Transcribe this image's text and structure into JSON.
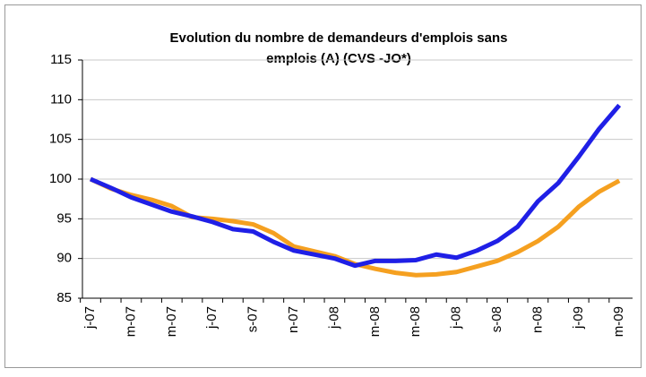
{
  "chart_data": {
    "type": "line",
    "title": [
      "Evolution du nombre de demandeurs d'emplois sans",
      "emplois (A) (CVS -JO*)"
    ],
    "categories": [
      "j-07",
      null,
      "m-07",
      null,
      "m-07",
      null,
      "j-07",
      null,
      "s-07",
      null,
      "n-07",
      null,
      "j-08",
      null,
      "m-08",
      null,
      "m-08",
      null,
      "j-08",
      null,
      "s-08",
      null,
      "n-08",
      null,
      "j-09",
      null,
      "m-09"
    ],
    "series": [
      {
        "color": "#f5a020",
        "values": [
          100,
          98.8,
          98.0,
          97.4,
          96.6,
          95.2,
          95.0,
          94.7,
          94.3,
          93.2,
          91.5,
          90.9,
          90.3,
          89.3,
          88.7,
          88.2,
          87.9,
          88.0,
          88.3,
          89.0,
          89.7,
          90.8,
          92.2,
          94.0,
          96.5,
          98.4,
          99.8
        ]
      },
      {
        "color": "#1f1fe6",
        "values": [
          100,
          98.9,
          97.7,
          96.8,
          95.9,
          95.3,
          94.6,
          93.7,
          93.4,
          92.1,
          91.0,
          90.5,
          90.0,
          89.1,
          89.7,
          89.7,
          89.8,
          90.5,
          90.1,
          91.0,
          92.2,
          94.0,
          97.2,
          99.5,
          102.8,
          106.3,
          109.3
        ]
      }
    ],
    "ylim": [
      85,
      115
    ],
    "yticks": [
      85,
      90,
      95,
      100,
      105,
      110,
      115
    ],
    "grid": true
  }
}
